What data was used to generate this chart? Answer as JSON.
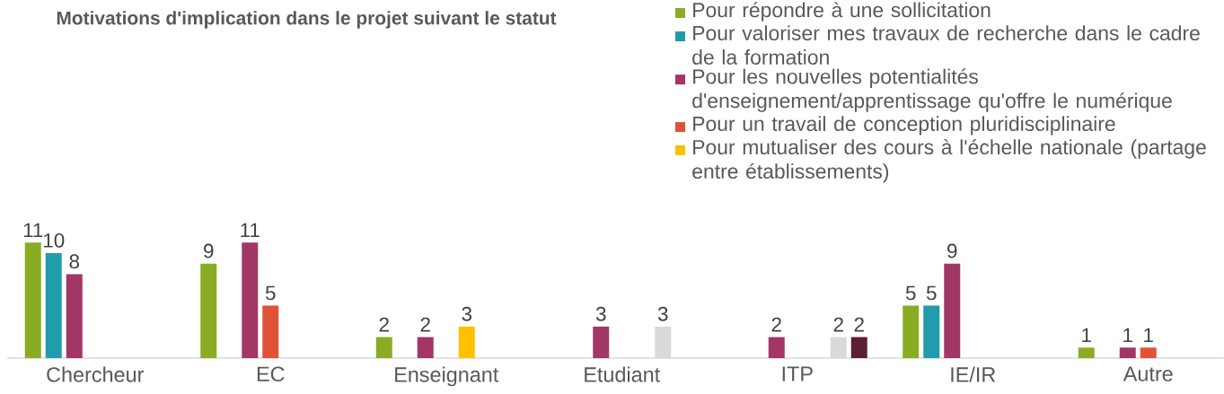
{
  "chart_data": {
    "type": "bar",
    "title": "Motivations d'implication dans le projet suivant le statut",
    "categories": [
      "Chercheur",
      "EC",
      "Enseignant",
      "Etudiant",
      "ITP",
      "IE/IR",
      "Autre"
    ],
    "series": [
      {
        "name": "Pour répondre à une sollicitation",
        "color": "#8aac23",
        "values": [
          11,
          9,
          2,
          null,
          null,
          5,
          1
        ]
      },
      {
        "name": "Pour valoriser mes travaux de recherche dans le cadre de la formation",
        "color": "#219cad",
        "values": [
          10,
          null,
          null,
          null,
          null,
          5,
          null
        ]
      },
      {
        "name": "Pour les nouvelles potentialités d'enseignement/apprentissage qu'offre le numérique",
        "color": "#a23766",
        "values": [
          8,
          11,
          2,
          3,
          2,
          9,
          1
        ]
      },
      {
        "name": "Pour un travail de conception pluridisciplinaire",
        "color": "#e05238",
        "values": [
          null,
          5,
          null,
          null,
          null,
          null,
          1
        ]
      },
      {
        "name": "Pour mutualiser des cours à l'échelle nationale (partage entre établissements)",
        "color": "#ffc000",
        "values": [
          null,
          null,
          3,
          null,
          null,
          null,
          null
        ]
      },
      {
        "color": "#d9d9d9",
        "values": [
          null,
          null,
          null,
          3,
          2,
          null,
          null
        ]
      },
      {
        "color": "#5c1f33",
        "values": [
          null,
          null,
          null,
          null,
          2,
          null,
          null
        ]
      }
    ],
    "data_labels": true,
    "legend": "top right"
  }
}
